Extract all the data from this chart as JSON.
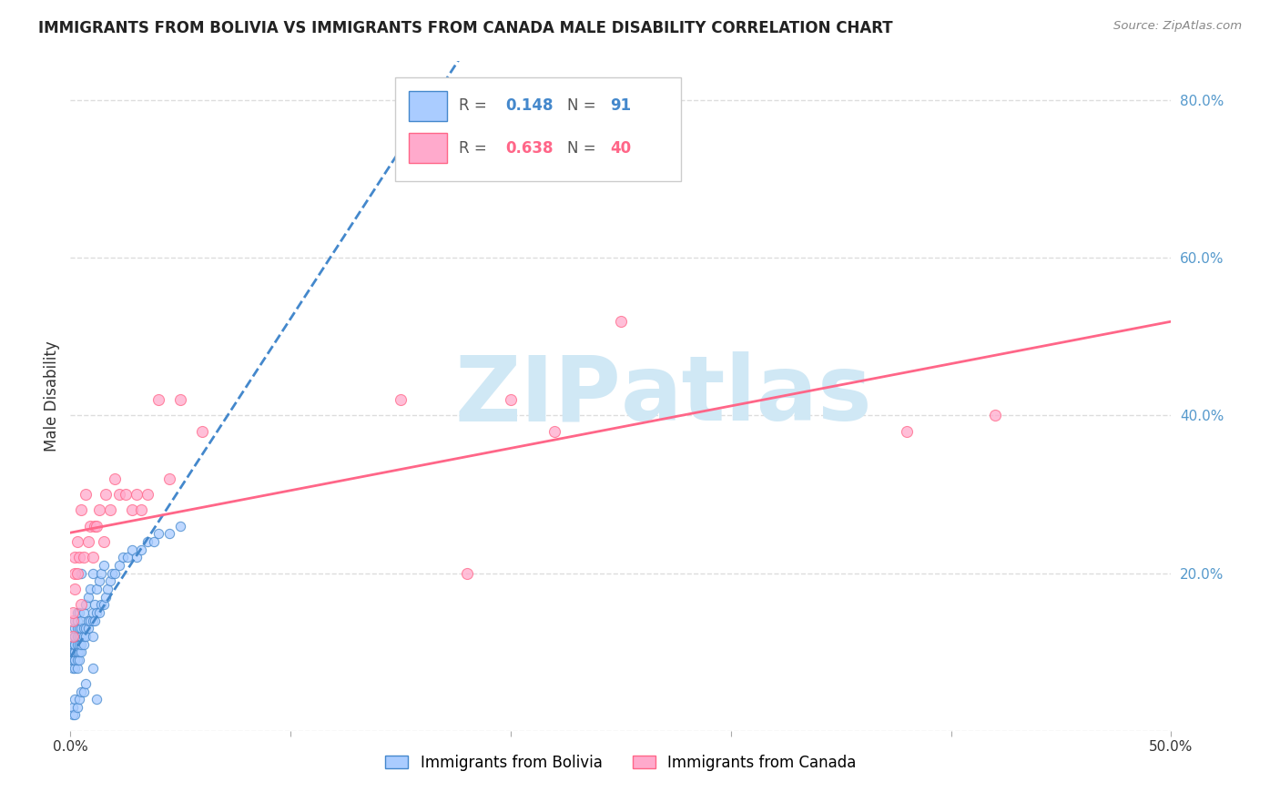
{
  "title": "IMMIGRANTS FROM BOLIVIA VS IMMIGRANTS FROM CANADA MALE DISABILITY CORRELATION CHART",
  "source": "Source: ZipAtlas.com",
  "ylabel": "Male Disability",
  "xlim": [
    0.0,
    0.5
  ],
  "ylim": [
    0.0,
    0.85
  ],
  "x_ticks": [
    0.0,
    0.1,
    0.2,
    0.3,
    0.4,
    0.5
  ],
  "x_tick_labels": [
    "0.0%",
    "",
    "",
    "",
    "",
    "50.0%"
  ],
  "y_ticks_right": [
    0.0,
    0.2,
    0.4,
    0.6,
    0.8
  ],
  "y_tick_labels_right": [
    "",
    "20.0%",
    "40.0%",
    "60.0%",
    "80.0%"
  ],
  "grid_color": "#dddddd",
  "background_color": "#ffffff",
  "watermark_color": "#d0e8f5",
  "bolivia_color": "#aaccff",
  "canada_color": "#ffaacc",
  "bolivia_line_color": "#4488cc",
  "canada_line_color": "#ff6688",
  "bolivia_R": 0.148,
  "bolivia_N": 91,
  "canada_R": 0.638,
  "canada_N": 40,
  "bolivia_x": [
    0.001,
    0.001,
    0.001,
    0.001,
    0.001,
    0.002,
    0.002,
    0.002,
    0.002,
    0.002,
    0.002,
    0.002,
    0.002,
    0.002,
    0.002,
    0.002,
    0.002,
    0.003,
    0.003,
    0.003,
    0.003,
    0.003,
    0.003,
    0.003,
    0.003,
    0.003,
    0.004,
    0.004,
    0.004,
    0.004,
    0.004,
    0.004,
    0.005,
    0.005,
    0.005,
    0.005,
    0.005,
    0.005,
    0.006,
    0.006,
    0.006,
    0.006,
    0.007,
    0.007,
    0.007,
    0.008,
    0.008,
    0.008,
    0.009,
    0.009,
    0.01,
    0.01,
    0.01,
    0.01,
    0.011,
    0.011,
    0.012,
    0.012,
    0.013,
    0.013,
    0.014,
    0.014,
    0.015,
    0.015,
    0.016,
    0.017,
    0.018,
    0.019,
    0.02,
    0.022,
    0.024,
    0.026,
    0.028,
    0.03,
    0.032,
    0.035,
    0.038,
    0.04,
    0.045,
    0.05,
    0.001,
    0.001,
    0.002,
    0.002,
    0.003,
    0.004,
    0.005,
    0.006,
    0.007,
    0.01,
    0.012
  ],
  "bolivia_y": [
    0.08,
    0.09,
    0.1,
    0.1,
    0.11,
    0.08,
    0.09,
    0.09,
    0.1,
    0.1,
    0.11,
    0.11,
    0.12,
    0.12,
    0.12,
    0.13,
    0.14,
    0.08,
    0.09,
    0.1,
    0.1,
    0.11,
    0.12,
    0.13,
    0.14,
    0.15,
    0.09,
    0.1,
    0.11,
    0.12,
    0.13,
    0.15,
    0.1,
    0.11,
    0.12,
    0.13,
    0.14,
    0.2,
    0.11,
    0.12,
    0.13,
    0.15,
    0.12,
    0.13,
    0.16,
    0.13,
    0.14,
    0.17,
    0.14,
    0.18,
    0.12,
    0.14,
    0.15,
    0.2,
    0.14,
    0.16,
    0.15,
    0.18,
    0.15,
    0.19,
    0.16,
    0.2,
    0.16,
    0.21,
    0.17,
    0.18,
    0.19,
    0.2,
    0.2,
    0.21,
    0.22,
    0.22,
    0.23,
    0.22,
    0.23,
    0.24,
    0.24,
    0.25,
    0.25,
    0.26,
    0.02,
    0.03,
    0.02,
    0.04,
    0.03,
    0.04,
    0.05,
    0.05,
    0.06,
    0.08,
    0.04
  ],
  "canada_x": [
    0.001,
    0.001,
    0.001,
    0.002,
    0.002,
    0.002,
    0.003,
    0.003,
    0.004,
    0.005,
    0.005,
    0.006,
    0.007,
    0.008,
    0.009,
    0.01,
    0.011,
    0.012,
    0.013,
    0.015,
    0.016,
    0.018,
    0.02,
    0.022,
    0.025,
    0.028,
    0.03,
    0.032,
    0.035,
    0.04,
    0.045,
    0.05,
    0.06,
    0.15,
    0.18,
    0.2,
    0.22,
    0.25,
    0.38,
    0.42
  ],
  "canada_y": [
    0.12,
    0.14,
    0.15,
    0.18,
    0.2,
    0.22,
    0.2,
    0.24,
    0.22,
    0.16,
    0.28,
    0.22,
    0.3,
    0.24,
    0.26,
    0.22,
    0.26,
    0.26,
    0.28,
    0.24,
    0.3,
    0.28,
    0.32,
    0.3,
    0.3,
    0.28,
    0.3,
    0.28,
    0.3,
    0.42,
    0.32,
    0.42,
    0.38,
    0.42,
    0.2,
    0.42,
    0.38,
    0.52,
    0.38,
    0.4
  ],
  "legend_bolivia_label": "Immigrants from Bolivia",
  "legend_canada_label": "Immigrants from Canada",
  "title_fontsize": 12,
  "axis_label_fontsize": 12,
  "tick_fontsize": 11,
  "right_tick_color": "#5599cc"
}
